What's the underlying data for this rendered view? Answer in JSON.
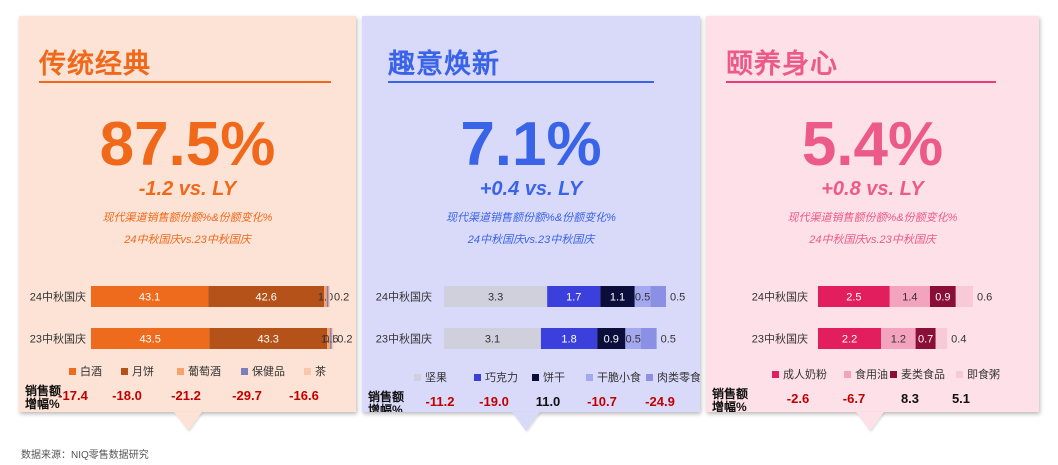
{
  "footer": "数据来源：NIQ零售数据研究",
  "metric_label_lines": [
    "销售额",
    "增幅%"
  ],
  "panels": [
    {
      "id": "trad",
      "title": "传统经典",
      "share": "87.5%",
      "change": "-1.2 vs. LY",
      "subtitle1": "现代渠道销售额份额%&份额变化%",
      "subtitle2": "24中秋国庆vs.23中秋国庆",
      "colors": {
        "bg": "#fde3d6",
        "accent": "#f0691a",
        "sub": "#f0691a",
        "line": "#f0691a"
      },
      "chart_data": {
        "type": "bar",
        "stacked": true,
        "orientation": "horizontal",
        "categories": [
          "24中秋国庆",
          "23中秋国庆"
        ],
        "series": [
          {
            "name": "白酒",
            "color": "#ee6a1c",
            "values": [
              43.1,
              43.5
            ],
            "labels": [
              "43.1",
              "43.5"
            ]
          },
          {
            "name": "月饼",
            "color": "#b5521a",
            "values": [
              42.6,
              43.3
            ],
            "labels": [
              "42.6",
              "43.3"
            ]
          },
          {
            "name": "葡萄酒",
            "color": "#f5a26f",
            "values": [
              1.0,
              1.1
            ],
            "labels": [
              "1.0",
              "1.1"
            ]
          },
          {
            "name": "保健品",
            "color": "#7b80b8",
            "values": [
              0.6,
              0.6
            ],
            "labels": [
              "",
              "0.6"
            ]
          },
          {
            "name": "茶",
            "color": "#f9c7ab",
            "values": [
              0.2,
              0.2
            ],
            "labels": [
              "0.2",
              "0.2"
            ]
          }
        ],
        "growth": [
          {
            "value": "-17.4",
            "color": "#c00000"
          },
          {
            "value": "-18.0",
            "color": "#c00000"
          },
          {
            "value": "-21.2",
            "color": "#c00000"
          },
          {
            "value": "-29.7",
            "color": "#c00000"
          },
          {
            "value": "-16.6",
            "color": "#c00000"
          }
        ]
      }
    },
    {
      "id": "fun",
      "title": "趣意焕新",
      "share": "7.1%",
      "change": "+0.4 vs. LY",
      "subtitle1": "现代渠道销售额份额%&份额变化%",
      "subtitle2": "24中秋国庆vs.23中秋国庆",
      "colors": {
        "bg": "#d9d9fa",
        "accent": "#3a64e8",
        "sub": "#3a64e8",
        "line": "#3a64e8"
      },
      "chart_data": {
        "type": "bar",
        "stacked": true,
        "orientation": "horizontal",
        "categories": [
          "24中秋国庆",
          "23中秋国庆"
        ],
        "series": [
          {
            "name": "坚果",
            "color": "#cfd0dc",
            "values": [
              3.3,
              3.1
            ],
            "labels": [
              "3.3",
              "3.1"
            ]
          },
          {
            "name": "巧克力",
            "color": "#3b3fdc",
            "values": [
              1.7,
              1.8
            ],
            "labels": [
              "1.7",
              "1.8"
            ]
          },
          {
            "name": "饼干",
            "color": "#0b0e3a",
            "values": [
              1.1,
              0.9
            ],
            "labels": [
              "1.1",
              "0.9"
            ]
          },
          {
            "name": "干脆小食",
            "color": "#a4a8ee",
            "values": [
              0.5,
              0.5
            ],
            "labels": [
              "0.5",
              "0.5"
            ]
          },
          {
            "name": "肉类零食",
            "color": "#8c90e4",
            "values": [
              0.5,
              0.5
            ],
            "labels": [
              "0.5",
              "0.5"
            ]
          }
        ],
        "growth": [
          {
            "value": "-11.2",
            "color": "#c00000"
          },
          {
            "value": "-19.0",
            "color": "#c00000"
          },
          {
            "value": "11.0",
            "color": "#111111"
          },
          {
            "value": "-10.7",
            "color": "#c00000"
          },
          {
            "value": "-24.9",
            "color": "#c00000"
          }
        ]
      }
    },
    {
      "id": "health",
      "title": "颐养身心",
      "share": "5.4%",
      "change": "+0.8 vs. LY",
      "subtitle1": "现代渠道销售额份额%&份额变化%",
      "subtitle2": "24中秋国庆vs.23中秋国庆",
      "colors": {
        "bg": "#fde0e8",
        "accent": "#ec5a8a",
        "sub": "#ec5a8a",
        "line": "#e83c7a"
      },
      "chart_data": {
        "type": "bar",
        "stacked": true,
        "orientation": "horizontal",
        "categories": [
          "24中秋国庆",
          "23中秋国庆"
        ],
        "series": [
          {
            "name": "成人奶粉",
            "color": "#e21e5e",
            "values": [
              2.5,
              2.2
            ],
            "labels": [
              "2.5",
              "2.2"
            ]
          },
          {
            "name": "食用油",
            "color": "#f4a3be",
            "values": [
              1.4,
              1.2
            ],
            "labels": [
              "1.4",
              "1.2"
            ]
          },
          {
            "name": "麦类食品",
            "color": "#8a0f38",
            "values": [
              0.9,
              0.7
            ],
            "labels": [
              "0.9",
              "0.7"
            ]
          },
          {
            "name": "即食粥",
            "color": "#f8cad8",
            "values": [
              0.6,
              0.4
            ],
            "labels": [
              "0.6",
              "0.4"
            ]
          }
        ],
        "growth": [
          {
            "value": "-2.6",
            "color": "#c00000"
          },
          {
            "value": "-6.7",
            "color": "#c00000"
          },
          {
            "value": "8.3",
            "color": "#111111"
          },
          {
            "value": "5.1",
            "color": "#111111"
          }
        ]
      }
    }
  ]
}
